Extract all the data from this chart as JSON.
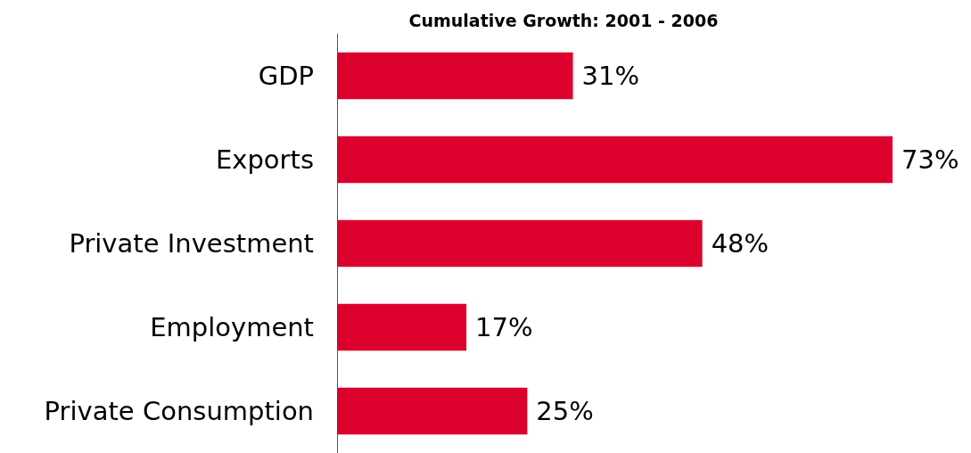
{
  "chart_data": {
    "type": "bar",
    "orientation": "horizontal",
    "title": "Cumulative Growth: 2001 - 2006",
    "categories": [
      "GDP",
      "Exports",
      "Private Investment",
      "Employment",
      "Private Consumption"
    ],
    "values": [
      31,
      73,
      48,
      17,
      25
    ],
    "value_labels": [
      "31%",
      "73%",
      "48%",
      "17%",
      "25%"
    ],
    "color": "#dc002d",
    "tick_labels": "y"
  }
}
